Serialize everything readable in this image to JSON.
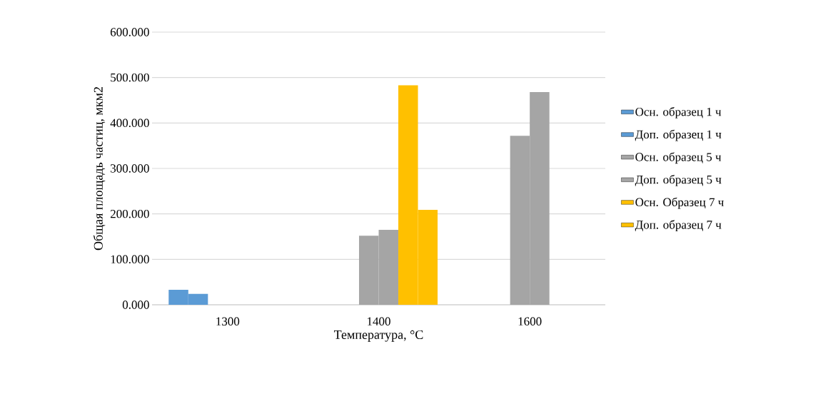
{
  "chart_data": {
    "type": "bar",
    "xlabel": "Температура, °C",
    "ylabel": "Общая площадь частиц, мкм2",
    "categories": [
      "1300",
      "1400",
      "1600"
    ],
    "ylim": [
      0,
      600
    ],
    "yticks": [
      {
        "value": 0,
        "label": "0.000"
      },
      {
        "value": 100,
        "label": "100.000"
      },
      {
        "value": 200,
        "label": "200.000"
      },
      {
        "value": 300,
        "label": "300.000"
      },
      {
        "value": 400,
        "label": "400.000"
      },
      {
        "value": 500,
        "label": "500.000"
      },
      {
        "value": 600,
        "label": "600.000"
      }
    ],
    "grid": "y",
    "legend": "right",
    "series": [
      {
        "name": "Осн. образец 1 ч",
        "color": "#5b9bd5",
        "values": [
          33,
          null,
          null
        ]
      },
      {
        "name": "Доп. образец 1 ч",
        "color": "#5b9bd5",
        "values": [
          24,
          null,
          null
        ]
      },
      {
        "name": "Осн. образец 5 ч",
        "color": "#a5a5a5",
        "values": [
          null,
          152,
          372
        ]
      },
      {
        "name": "Доп. образец 5 ч",
        "color": "#a5a5a5",
        "values": [
          null,
          165,
          468
        ]
      },
      {
        "name": "Осн. Образец 7 ч",
        "color": "#ffc000",
        "values": [
          null,
          483,
          null
        ]
      },
      {
        "name": "Доп. образец 7 ч",
        "color": "#ffc000",
        "values": [
          null,
          209,
          null
        ]
      }
    ]
  }
}
